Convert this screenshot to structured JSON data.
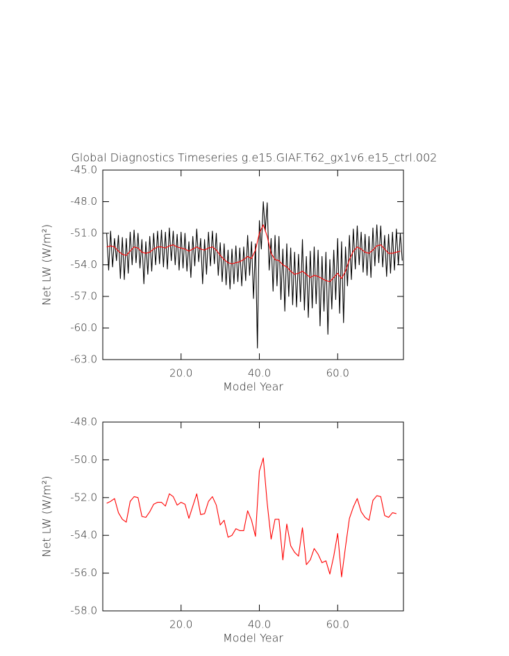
{
  "chart_data": [
    {
      "type": "line",
      "title": "Global Diagnostics Timeseries g.e15.GIAF.T62_gx1v6.e15_ctrl.002",
      "x_label": "Model Year",
      "y_label": "Net LW (W/m²)",
      "xlim": [
        0,
        76.8
      ],
      "ylim": [
        -63,
        -45
      ],
      "xticks": [
        {
          "value": 20,
          "label": "20.0"
        },
        {
          "value": 40,
          "label": "40.0"
        },
        {
          "value": 60,
          "label": "60.0"
        }
      ],
      "yticks": [
        {
          "value": -63,
          "label": "-63.0"
        },
        {
          "value": -60,
          "label": "-60.0"
        },
        {
          "value": -57,
          "label": "-57.0"
        },
        {
          "value": -54,
          "label": "-54.0"
        },
        {
          "value": -51,
          "label": "-51.0"
        },
        {
          "value": -48,
          "label": "-48.0"
        },
        {
          "value": -45,
          "label": "-45.0"
        }
      ],
      "series": [
        {
          "color": "#000000",
          "x": [
            1,
            1.5,
            2,
            2.5,
            3,
            3.5,
            4,
            4.5,
            5,
            5.5,
            6,
            6.5,
            7,
            7.5,
            8,
            8.5,
            9,
            9.5,
            10,
            10.5,
            11,
            11.5,
            12,
            12.5,
            13,
            13.5,
            14,
            14.5,
            15,
            15.5,
            16,
            16.5,
            17,
            17.5,
            18,
            18.5,
            19,
            19.5,
            20,
            20.5,
            21,
            21.5,
            22,
            22.5,
            23,
            23.5,
            24,
            24.5,
            25,
            25.5,
            26,
            26.5,
            27,
            27.5,
            28,
            28.5,
            29,
            29.5,
            30,
            30.5,
            31,
            31.5,
            32,
            32.5,
            33,
            33.5,
            34,
            34.5,
            35,
            35.5,
            36,
            36.5,
            37,
            37.5,
            38,
            38.5,
            39,
            39.5,
            40,
            40.5,
            41,
            41.5,
            42,
            42.5,
            43,
            43.5,
            44,
            44.5,
            45,
            45.5,
            46,
            46.5,
            47,
            47.5,
            48,
            48.5,
            49,
            49.5,
            50,
            50.5,
            51,
            51.5,
            52,
            52.5,
            53,
            53.5,
            54,
            54.5,
            55,
            55.5,
            56,
            56.5,
            57,
            57.5,
            58,
            58.5,
            59,
            59.5,
            60,
            60.5,
            61,
            61.5,
            62,
            62.5,
            63,
            63.5,
            64,
            64.5,
            65,
            65.5,
            66,
            66.5,
            67,
            67.5,
            68,
            68.5,
            69,
            69.5,
            70,
            70.5,
            71,
            71.5,
            72,
            72.5,
            73,
            73.5,
            74,
            74.5,
            75,
            75.5,
            76,
            76.5
          ],
          "values": [
            -51.0,
            -54.5,
            -50.8,
            -54.2,
            -51.5,
            -53.6,
            -51.2,
            -55.3,
            -51.4,
            -55.4,
            -51.5,
            -54.8,
            -50.9,
            -54.0,
            -50.7,
            -53.8,
            -51.0,
            -54.3,
            -51.6,
            -55.8,
            -51.8,
            -54.9,
            -51.3,
            -54.6,
            -51.0,
            -54.0,
            -50.8,
            -53.9,
            -50.7,
            -54.2,
            -50.9,
            -54.4,
            -50.5,
            -53.6,
            -50.8,
            -54.0,
            -51.1,
            -54.5,
            -50.9,
            -54.3,
            -51.0,
            -54.6,
            -51.8,
            -55.2,
            -51.3,
            -54.1,
            -50.6,
            -53.7,
            -51.5,
            -55.8,
            -51.6,
            -54.9,
            -50.9,
            -54.1,
            -50.8,
            -53.9,
            -51.0,
            -55.0,
            -51.9,
            -55.6,
            -52.0,
            -55.9,
            -52.6,
            -56.3,
            -52.5,
            -55.8,
            -52.2,
            -55.6,
            -52.4,
            -56.0,
            -52.3,
            -55.5,
            -51.2,
            -55.0,
            -51.8,
            -57.2,
            -52.0,
            -61.9,
            -49.8,
            -52.5,
            -48.0,
            -50.8,
            -48.1,
            -54.5,
            -51.5,
            -56.5,
            -51.2,
            -56.0,
            -51.3,
            -57.3,
            -52.5,
            -58.4,
            -52.0,
            -57.0,
            -52.4,
            -57.8,
            -52.8,
            -58.0,
            -53.0,
            -57.5,
            -51.6,
            -58.3,
            -53.2,
            -59.0,
            -52.7,
            -58.1,
            -52.3,
            -57.7,
            -52.6,
            -59.8,
            -53.2,
            -58.4,
            -52.8,
            -60.6,
            -53.5,
            -58.2,
            -52.6,
            -57.3,
            -51.5,
            -58.6,
            -51.8,
            -59.5,
            -52.3,
            -56.0,
            -51.2,
            -55.4,
            -50.6,
            -54.4,
            -50.3,
            -54.0,
            -50.9,
            -54.7,
            -51.1,
            -55.0,
            -51.3,
            -55.2,
            -50.5,
            -54.1,
            -50.2,
            -53.8,
            -50.3,
            -54.2,
            -51.2,
            -55.1,
            -51.1,
            -54.8,
            -50.9,
            -54.5,
            -50.6,
            -54.0,
            -51.0,
            -53.6
          ]
        },
        {
          "color": "#ff0000",
          "x": [
            1,
            2,
            3,
            4,
            5,
            6,
            7,
            8,
            9,
            10,
            11,
            12,
            13,
            14,
            15,
            16,
            17,
            18,
            19,
            20,
            21,
            22,
            23,
            24,
            25,
            26,
            27,
            28,
            29,
            30,
            31,
            32,
            33,
            34,
            35,
            36,
            37,
            38,
            39,
            40,
            41,
            42,
            43,
            44,
            45,
            46,
            47,
            48,
            49,
            50,
            51,
            52,
            53,
            54,
            55,
            56,
            57,
            58,
            59,
            60,
            61,
            62,
            63,
            64,
            65,
            66,
            67,
            68,
            69,
            70,
            71,
            72,
            73,
            74,
            75,
            76
          ],
          "values": [
            -52.3,
            -52.2,
            -52.3,
            -52.7,
            -53.0,
            -53.1,
            -52.7,
            -52.3,
            -52.4,
            -52.8,
            -52.9,
            -52.8,
            -52.5,
            -52.3,
            -52.3,
            -52.4,
            -52.2,
            -52.1,
            -52.3,
            -52.4,
            -52.5,
            -52.7,
            -52.5,
            -52.3,
            -52.5,
            -52.6,
            -52.4,
            -52.3,
            -52.6,
            -53.1,
            -53.5,
            -53.8,
            -53.9,
            -53.8,
            -53.7,
            -53.5,
            -53.2,
            -53.4,
            -52.6,
            -51.0,
            -50.2,
            -51.3,
            -52.9,
            -53.5,
            -53.6,
            -54.0,
            -54.2,
            -54.6,
            -54.9,
            -54.8,
            -54.6,
            -54.9,
            -55.2,
            -55.0,
            -55.1,
            -55.3,
            -55.5,
            -55.6,
            -55.2,
            -54.8,
            -55.3,
            -54.6,
            -53.5,
            -52.7,
            -52.3,
            -52.5,
            -52.8,
            -52.9,
            -52.6,
            -52.2,
            -52.1,
            -52.5,
            -52.9,
            -52.9,
            -52.8,
            -52.7
          ]
        }
      ]
    },
    {
      "type": "line",
      "x_label": "Model Year",
      "y_label": "Net LW (W/m²)",
      "xlim": [
        0,
        76.8
      ],
      "ylim": [
        -58,
        -48
      ],
      "xticks": [
        {
          "value": 20,
          "label": "20.0"
        },
        {
          "value": 40,
          "label": "40.0"
        },
        {
          "value": 60,
          "label": "60.0"
        }
      ],
      "yticks": [
        {
          "value": -58,
          "label": "-58.0"
        },
        {
          "value": -56,
          "label": "-56.0"
        },
        {
          "value": -54,
          "label": "-54.0"
        },
        {
          "value": -52,
          "label": "-52.0"
        },
        {
          "value": -50,
          "label": "-50.0"
        },
        {
          "value": -48,
          "label": "-48.0"
        }
      ],
      "series": [
        {
          "color": "#ff0000",
          "x": [
            1,
            2,
            3,
            4,
            5,
            6,
            7,
            8,
            9,
            10,
            11,
            12,
            13,
            14,
            15,
            16,
            17,
            18,
            19,
            20,
            21,
            22,
            23,
            24,
            25,
            26,
            27,
            28,
            29,
            30,
            31,
            32,
            33,
            34,
            35,
            36,
            37,
            38,
            39,
            40,
            41,
            42,
            43,
            44,
            45,
            46,
            47,
            48,
            49,
            50,
            51,
            52,
            53,
            54,
            55,
            56,
            57,
            58,
            59,
            60,
            61,
            62,
            63,
            64,
            65,
            66,
            67,
            68,
            69,
            70,
            71,
            72,
            73,
            74,
            75
          ],
          "values": [
            -52.3,
            -52.2,
            -52.05,
            -52.8,
            -53.15,
            -53.3,
            -52.2,
            -51.95,
            -52.0,
            -53.0,
            -53.05,
            -52.75,
            -52.35,
            -52.25,
            -52.25,
            -52.45,
            -51.8,
            -51.95,
            -52.4,
            -52.25,
            -52.35,
            -53.1,
            -52.45,
            -51.8,
            -52.9,
            -52.85,
            -52.2,
            -51.95,
            -52.4,
            -53.45,
            -53.2,
            -54.1,
            -54.0,
            -53.65,
            -53.75,
            -53.75,
            -52.7,
            -53.2,
            -54.05,
            -50.6,
            -49.9,
            -52.3,
            -54.2,
            -53.15,
            -53.15,
            -55.3,
            -53.4,
            -54.55,
            -54.9,
            -55.1,
            -53.6,
            -55.55,
            -55.3,
            -54.7,
            -55.0,
            -55.45,
            -55.35,
            -56.05,
            -55.1,
            -53.9,
            -56.2,
            -54.6,
            -53.1,
            -52.5,
            -52.05,
            -52.75,
            -53.05,
            -53.2,
            -52.15,
            -51.9,
            -51.95,
            -52.95,
            -53.05,
            -52.8,
            -52.85
          ]
        }
      ]
    }
  ]
}
